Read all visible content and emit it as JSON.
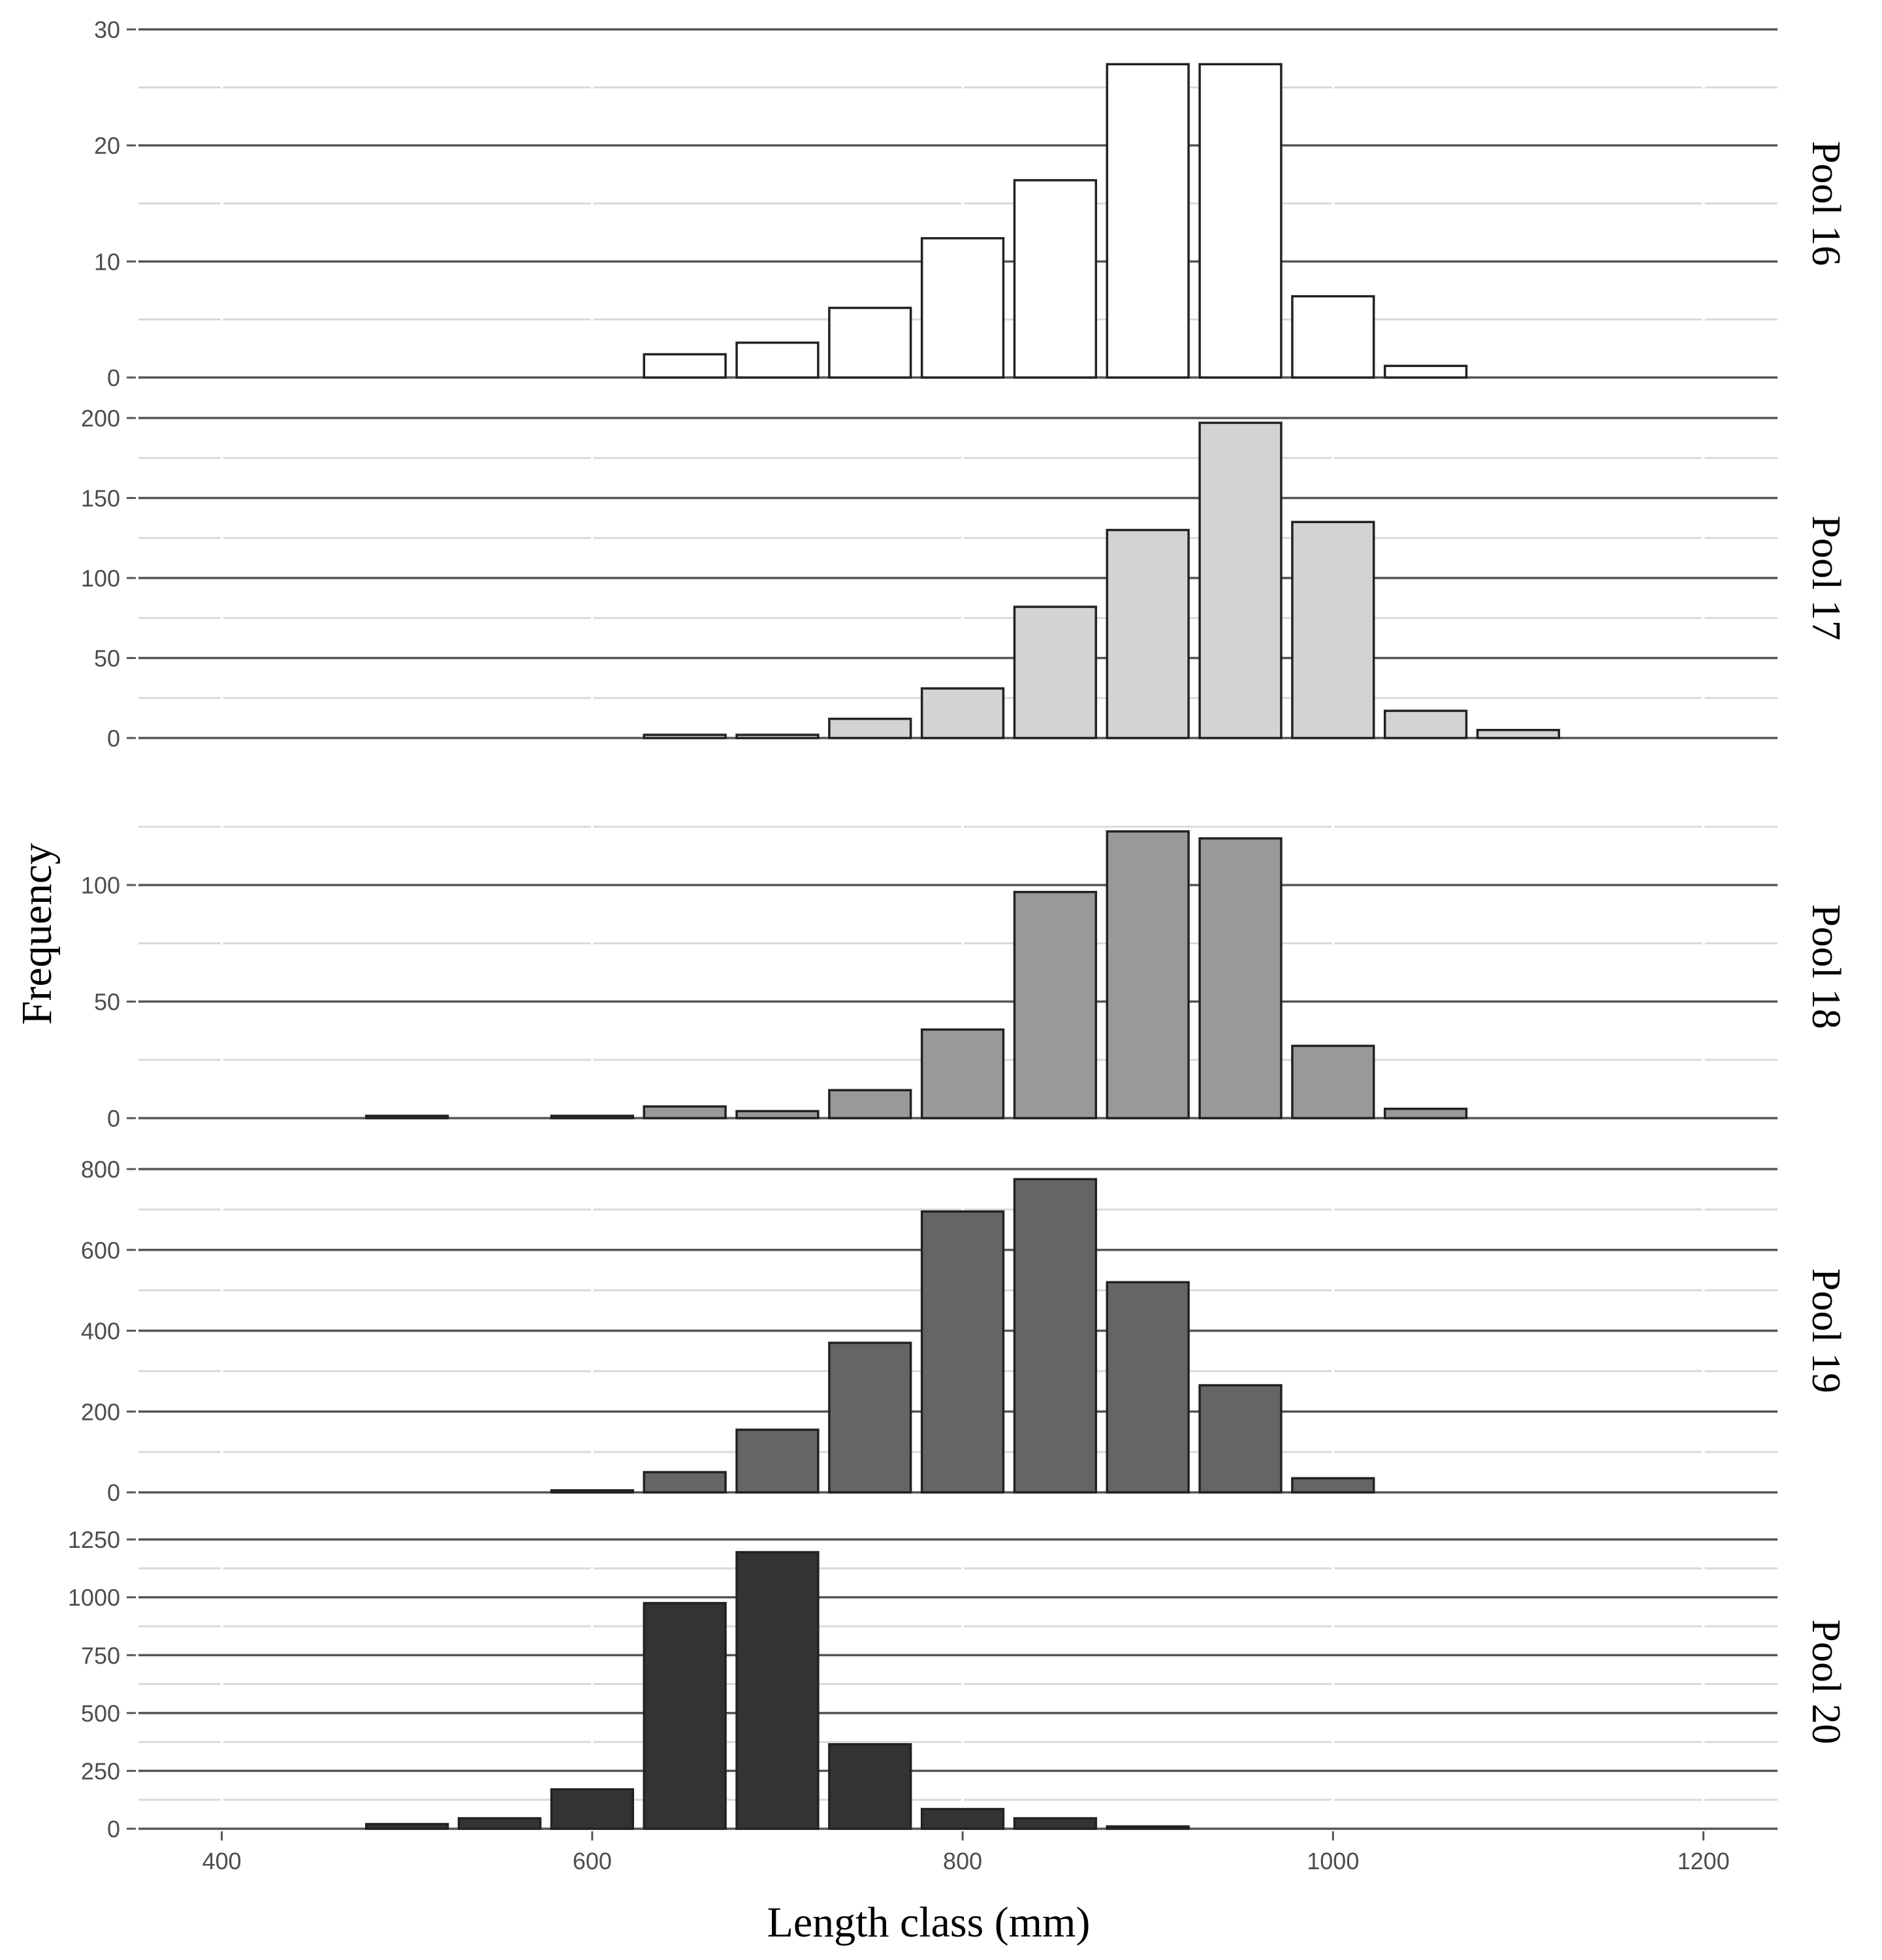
{
  "chart_data": {
    "type": "bar",
    "layout": "faceted histogram (stacked panels, shared x axis)",
    "xlabel": "Length class (mm)",
    "ylabel": "Frequency",
    "xlim": [
      355,
      1240
    ],
    "x_ticks": [
      400,
      600,
      800,
      1000,
      1200
    ],
    "bin_width": 50,
    "grid": true,
    "panels": [
      {
        "label": "Pool 16",
        "fill": "#ffffff",
        "ylim": [
          0,
          30
        ],
        "y_ticks": [
          0,
          10,
          20,
          30
        ],
        "x": [
          650,
          700,
          750,
          800,
          850,
          900,
          950,
          1000,
          1050
        ],
        "values": [
          2,
          3,
          6,
          12,
          17,
          27,
          27,
          7,
          1
        ]
      },
      {
        "label": "Pool 17",
        "fill": "#d3d3d3",
        "ylim": [
          0,
          200
        ],
        "y_ticks": [
          0,
          50,
          100,
          150,
          200
        ],
        "x": [
          650,
          700,
          750,
          800,
          850,
          900,
          950,
          1000,
          1050,
          1100
        ],
        "values": [
          2,
          2,
          12,
          31,
          82,
          130,
          197,
          135,
          17,
          5
        ]
      },
      {
        "label": "Pool 18",
        "fill": "#999999",
        "ylim": [
          0,
          130
        ],
        "y_ticks": [
          0,
          50,
          100
        ],
        "x": [
          500,
          600,
          650,
          700,
          750,
          800,
          850,
          900,
          950,
          1000,
          1050
        ],
        "values": [
          1,
          1,
          5,
          3,
          12,
          38,
          97,
          123,
          120,
          31,
          4
        ]
      },
      {
        "label": "Pool 19",
        "fill": "#656565",
        "ylim": [
          0,
          800
        ],
        "y_ticks": [
          0,
          200,
          400,
          600,
          800
        ],
        "x": [
          600,
          650,
          700,
          750,
          800,
          850,
          900,
          950,
          1000
        ],
        "values": [
          5,
          50,
          155,
          370,
          695,
          775,
          520,
          265,
          35
        ]
      },
      {
        "label": "Pool 20",
        "fill": "#333333",
        "ylim": [
          0,
          1270
        ],
        "y_ticks": [
          0,
          250,
          500,
          750,
          1000,
          1250
        ],
        "x": [
          500,
          550,
          600,
          650,
          700,
          750,
          800,
          850,
          900
        ],
        "values": [
          20,
          45,
          170,
          975,
          1195,
          365,
          85,
          45,
          10
        ]
      }
    ]
  }
}
